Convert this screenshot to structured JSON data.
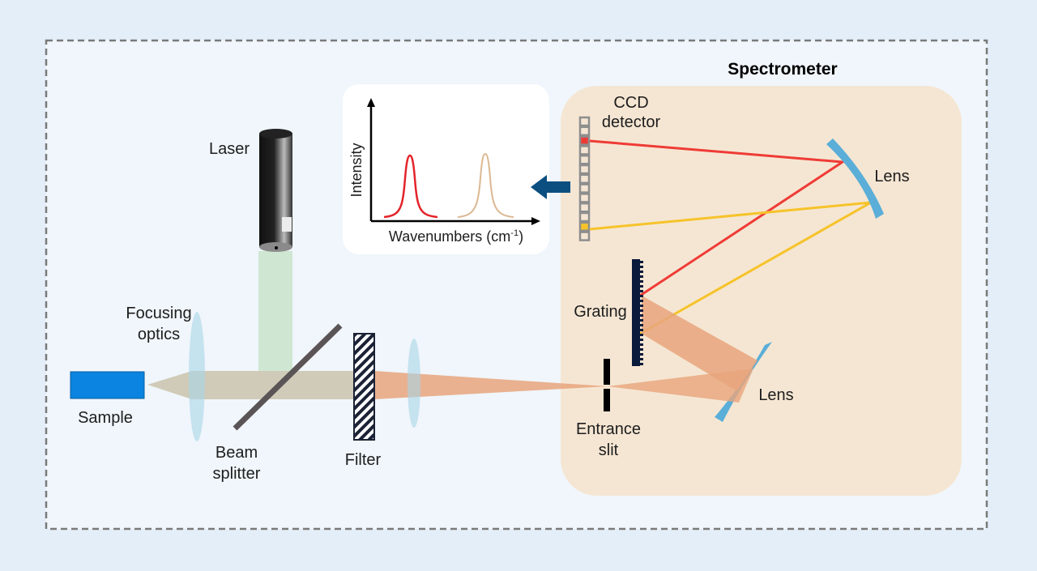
{
  "title": "Spectrometer",
  "labels": {
    "laser": "Laser",
    "focusing_1": "Focusing",
    "focusing_2": "optics",
    "sample": "Sample",
    "beam_1": "Beam",
    "beam_2": "splitter",
    "filter": "Filter",
    "slit_1": "Entrance",
    "slit_2": "slit",
    "grating": "Grating",
    "lens_upper": "Lens",
    "lens_lower": "Lens",
    "ccd_1": "CCD",
    "ccd_2": "detector"
  },
  "inset": {
    "y_label": "Intensity",
    "x_label": "Wavenumbers (cm",
    "x_label_sup": "-1",
    "x_label_end": ")"
  },
  "colors": {
    "sample": "#0a84e0",
    "laser_beam": "#cfe6d3",
    "scattered_beam": "#e8a57c",
    "red_ray": "#ef3b36",
    "yellow_ray": "#f6c32a",
    "lens": "#5aaed8",
    "arrow": "#0b4f80",
    "spectrometer_bg": "#f5e6d3"
  }
}
